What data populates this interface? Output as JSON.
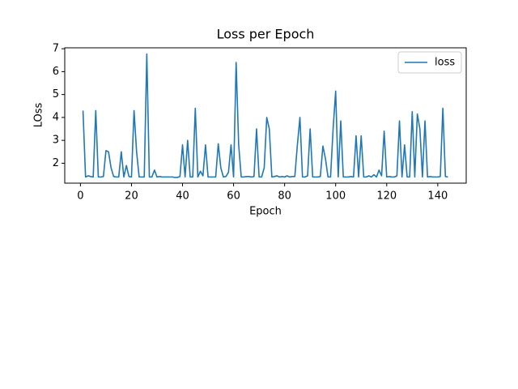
{
  "chart_data": {
    "type": "line",
    "title": "Loss per Epoch",
    "xlabel": "Epoch",
    "ylabel": "LOss",
    "x": [
      1,
      2,
      3,
      4,
      5,
      6,
      7,
      8,
      9,
      10,
      11,
      12,
      13,
      14,
      15,
      16,
      17,
      18,
      19,
      20,
      21,
      22,
      23,
      24,
      25,
      26,
      27,
      28,
      29,
      30,
      31,
      32,
      33,
      34,
      35,
      36,
      37,
      38,
      39,
      40,
      41,
      42,
      43,
      44,
      45,
      46,
      47,
      48,
      49,
      50,
      51,
      52,
      53,
      54,
      55,
      56,
      57,
      58,
      59,
      60,
      61,
      62,
      63,
      64,
      65,
      66,
      67,
      68,
      69,
      70,
      71,
      72,
      73,
      74,
      75,
      76,
      77,
      78,
      79,
      80,
      81,
      82,
      83,
      84,
      85,
      86,
      87,
      88,
      89,
      90,
      91,
      92,
      93,
      94,
      95,
      96,
      97,
      98,
      99,
      100,
      101,
      102,
      103,
      104,
      105,
      106,
      107,
      108,
      109,
      110,
      111,
      112,
      113,
      114,
      115,
      116,
      117,
      118,
      119,
      120,
      121,
      122,
      123,
      124,
      125,
      126,
      127,
      128,
      129,
      130,
      131,
      132,
      133,
      134,
      135,
      136,
      137,
      138,
      139,
      140,
      141,
      142,
      143,
      144
    ],
    "series": [
      {
        "name": "loss",
        "color": "#1f77b4",
        "values": [
          4.3,
          1.4,
          1.45,
          1.42,
          1.4,
          4.3,
          1.4,
          1.4,
          1.42,
          2.55,
          2.5,
          1.8,
          1.42,
          1.4,
          1.4,
          2.5,
          1.4,
          1.9,
          1.42,
          1.4,
          4.3,
          2.5,
          1.4,
          1.4,
          1.4,
          6.77,
          1.4,
          1.4,
          1.7,
          1.4,
          1.42,
          1.4,
          1.4,
          1.4,
          1.4,
          1.4,
          1.38,
          1.38,
          1.42,
          2.8,
          1.4,
          3.0,
          1.4,
          1.4,
          4.4,
          1.4,
          1.65,
          1.45,
          2.8,
          1.4,
          1.4,
          1.4,
          1.4,
          2.85,
          1.8,
          1.4,
          1.42,
          1.6,
          2.8,
          1.4,
          6.4,
          2.8,
          1.4,
          1.4,
          1.42,
          1.42,
          1.4,
          1.42,
          3.5,
          1.4,
          1.4,
          1.8,
          4.0,
          3.5,
          1.4,
          1.42,
          1.45,
          1.4,
          1.42,
          1.4,
          1.45,
          1.4,
          1.42,
          1.42,
          2.8,
          4.0,
          1.4,
          1.4,
          1.45,
          3.5,
          1.4,
          1.4,
          1.4,
          1.42,
          2.75,
          2.2,
          1.4,
          1.4,
          3.5,
          5.15,
          1.4,
          3.85,
          1.4,
          1.4,
          1.4,
          1.42,
          1.4,
          3.2,
          1.4,
          3.2,
          1.4,
          1.4,
          1.45,
          1.4,
          1.5,
          1.4,
          1.7,
          1.45,
          3.4,
          1.4,
          1.42,
          1.4,
          1.4,
          1.45,
          3.85,
          1.4,
          2.8,
          1.4,
          1.4,
          4.25,
          1.4,
          4.15,
          3.5,
          1.4,
          3.85,
          1.4,
          1.42,
          1.4,
          1.4,
          1.4,
          1.42,
          4.4,
          1.42,
          1.4
        ]
      }
    ],
    "xlim": [
      -6.15,
      151.15
    ],
    "xticks": [
      0,
      20,
      40,
      60,
      80,
      100,
      120,
      140
    ],
    "ylim": [
      1.13,
      7.04
    ],
    "yticks": [
      2,
      3,
      4,
      5,
      6,
      7
    ],
    "legend": "upper right"
  }
}
